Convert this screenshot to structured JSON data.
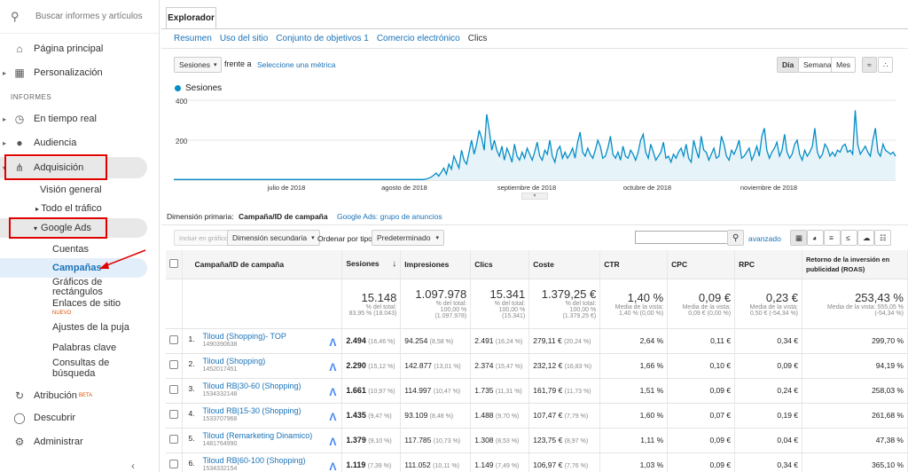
{
  "sidebar": {
    "search_placeholder": "Buscar informes y artículos",
    "home": "Página principal",
    "custom": "Personalización",
    "section_reports": "INFORMES",
    "realtime": "En tiempo real",
    "audience": "Audiencia",
    "acquisition": "Adquisición",
    "overview": "Visión general",
    "all_traffic": "Todo el tráfico",
    "google_ads": "Google Ads",
    "cuentas": "Cuentas",
    "campanas": "Campañas",
    "graficos1": "Gráficos de",
    "graficos2": "rectángulos",
    "enlaces": "Enlaces de sitio",
    "nuevo": "NUEVO",
    "ajustes": "Ajustes de la puja",
    "palabras": "Palabras clave",
    "consultas1": "Consultas de",
    "consultas2": "búsqueda",
    "atribucion": "Atribución",
    "beta": "BETA",
    "descubrir": "Descubrir",
    "administrar": "Administrar"
  },
  "explorer": {
    "tab": "Explorador",
    "subtabs": [
      "Resumen",
      "Uso del sitio",
      "Conjunto de objetivos 1",
      "Comercio electrónico",
      "Clics"
    ],
    "metric": "Sesiones",
    "vs": "frente a",
    "select_metric": "Seleccione una métrica",
    "day": "Día",
    "week": "Semana",
    "month": "Mes"
  },
  "chart_data": {
    "type": "area",
    "series": [
      {
        "name": "Sesiones",
        "values": [
          3,
          3,
          3,
          3,
          3,
          3,
          3,
          3,
          3,
          3,
          3,
          3,
          3,
          3,
          3,
          3,
          3,
          3,
          3,
          3,
          3,
          3,
          3,
          3,
          3,
          3,
          3,
          3,
          3,
          3,
          3,
          3,
          3,
          3,
          3,
          3,
          3,
          3,
          3,
          3,
          3,
          3,
          3,
          3,
          3,
          3,
          3,
          3,
          3,
          3,
          3,
          3,
          3,
          3,
          3,
          3,
          3,
          3,
          3,
          3,
          3,
          3,
          3,
          3,
          3,
          3,
          3,
          3,
          3,
          3,
          3,
          3,
          3,
          3,
          3,
          3,
          3,
          3,
          3,
          3,
          3,
          3,
          3,
          3,
          3,
          3,
          3,
          3,
          3,
          3,
          3,
          3,
          3,
          3,
          3,
          3,
          3,
          3,
          3,
          3,
          5,
          10,
          15,
          25,
          35,
          20,
          40,
          60,
          30,
          80,
          55,
          120,
          90,
          60,
          150,
          100,
          80,
          140,
          200,
          130,
          180,
          250,
          210,
          150,
          330,
          250,
          150,
          200,
          150,
          120,
          170,
          100,
          160,
          130,
          90,
          180,
          120,
          100,
          140,
          110,
          160,
          130,
          100,
          140,
          190,
          120,
          100,
          150,
          130,
          200,
          120,
          90,
          150,
          170,
          110,
          140,
          110,
          130,
          160,
          110,
          190,
          240,
          140,
          120,
          160,
          130,
          110,
          150,
          200,
          170,
          110,
          120,
          160,
          220,
          130,
          110,
          140,
          100,
          170,
          120,
          110,
          150,
          130,
          100,
          140,
          200,
          230,
          140,
          110,
          180,
          140,
          100,
          120,
          140,
          190,
          110,
          120,
          90,
          130,
          110,
          140,
          160,
          120,
          180,
          110,
          90,
          200,
          150,
          110,
          220,
          150,
          140,
          100,
          130,
          160,
          110,
          120,
          220,
          180,
          120,
          100,
          150,
          130,
          160,
          200,
          110,
          120,
          140,
          160,
          100,
          130,
          170,
          120,
          220,
          260,
          150,
          110,
          140,
          160,
          190,
          120,
          150,
          230,
          140,
          110,
          130,
          180,
          200,
          130,
          100,
          150,
          120,
          140,
          170,
          260,
          140,
          110,
          130,
          180,
          160,
          120,
          140,
          120,
          150,
          140,
          170,
          180,
          140,
          150,
          130,
          350,
          180,
          130,
          150,
          170,
          140,
          120,
          200,
          260,
          140,
          120,
          180,
          150,
          140,
          130,
          140,
          120
        ]
      }
    ],
    "y_ticks": [
      {
        "label": "400",
        "value": 400
      },
      {
        "label": "200",
        "value": 200
      }
    ],
    "x_labels": [
      "julio de 2018",
      "agosto de 2018",
      "septiembre de 2018",
      "octubre de 2018",
      "noviembre de 2018"
    ],
    "ylim": [
      0,
      400
    ]
  },
  "dimension": {
    "label": "Dimensión primaria:",
    "active": "Campaña/ID de campaña",
    "alt": "Google Ads: grupo de anuncios",
    "include": "Incluir en gráfico",
    "secondary": "Dimensión secundaria",
    "sort_label": "Ordenar por tipo:",
    "sort_value": "Predeterminado",
    "advanced": "avanzado"
  },
  "table": {
    "headers": [
      "Campaña/ID de campaña",
      "Sesiones",
      "Impresiones",
      "Clics",
      "Coste",
      "CTR",
      "CPC",
      "RPC",
      "Retorno de la inversión en publicidad (ROAS)"
    ],
    "totals": [
      {
        "main": "15.148",
        "sub1": "% del total:",
        "sub2": "83,95 % (18.043)",
        "sub3": ""
      },
      {
        "main": "1.097.978",
        "sub1": "% del total:",
        "sub2": "100,00 %",
        "sub3": "(1.097.978)"
      },
      {
        "main": "15.341",
        "sub1": "% del total:",
        "sub2": "100,00 %",
        "sub3": "(15.341)"
      },
      {
        "main": "1.379,25 €",
        "sub1": "% del total:",
        "sub2": "100,00 %",
        "sub3": "(1.379,25 €)"
      },
      {
        "main": "1,40 %",
        "sub1": "Media de la vista:",
        "sub2": "1,40 % (0,00 %)",
        "sub3": ""
      },
      {
        "main": "0,09 €",
        "sub1": "Media de la vista:",
        "sub2": "0,09 € (0,00 %)",
        "sub3": ""
      },
      {
        "main": "0,23 €",
        "sub1": "Media de la vista:",
        "sub2": "0,50 € (-54,34 %)",
        "sub3": ""
      },
      {
        "main": "253,43 %",
        "sub1": "Media de la vista: 555,05 %",
        "sub2": "(-54,34 %)",
        "sub3": ""
      }
    ],
    "rows": [
      {
        "n": "1.",
        "name": "Tiloud (Shopping)- TOP",
        "id": "1490390638",
        "ses": "2.494",
        "sesp": "(16,46 %)",
        "imp": "94.254",
        "impp": "(8,58 %)",
        "cli": "2.491",
        "clip": "(16,24 %)",
        "cost": "279,11 €",
        "costp": "(20,24 %)",
        "ctr": "2,64 %",
        "cpc": "0,11 €",
        "rpc": "0,34 €",
        "roas": "299,70 %"
      },
      {
        "n": "2.",
        "name": "Tiloud (Shopping)",
        "id": "1452017451",
        "ses": "2.290",
        "sesp": "(15,12 %)",
        "imp": "142.877",
        "impp": "(13,01 %)",
        "cli": "2.374",
        "clip": "(15,47 %)",
        "cost": "232,12 €",
        "costp": "(16,83 %)",
        "ctr": "1,66 %",
        "cpc": "0,10 €",
        "rpc": "0,09 €",
        "roas": "94,19 %"
      },
      {
        "n": "3.",
        "name": "Tiloud RB|30-60 (Shopping)",
        "id": "1534332148",
        "ses": "1.661",
        "sesp": "(10,97 %)",
        "imp": "114.997",
        "impp": "(10,47 %)",
        "cli": "1.735",
        "clip": "(11,31 %)",
        "cost": "161,79 €",
        "costp": "(11,73 %)",
        "ctr": "1,51 %",
        "cpc": "0,09 €",
        "rpc": "0,24 €",
        "roas": "258,03 %"
      },
      {
        "n": "4.",
        "name": "Tiloud RB|15-30 (Shopping)",
        "id": "1533707968",
        "ses": "1.435",
        "sesp": "(9,47 %)",
        "imp": "93.109",
        "impp": "(8,48 %)",
        "cli": "1.488",
        "clip": "(9,70 %)",
        "cost": "107,47 €",
        "costp": "(7,79 %)",
        "ctr": "1,60 %",
        "cpc": "0,07 €",
        "rpc": "0,19 €",
        "roas": "261,68 %"
      },
      {
        "n": "5.",
        "name": "Tiloud (Remarketing Dinamico)",
        "id": "1481764990",
        "ses": "1.379",
        "sesp": "(9,10 %)",
        "imp": "117.785",
        "impp": "(10,73 %)",
        "cli": "1.308",
        "clip": "(8,53 %)",
        "cost": "123,75 €",
        "costp": "(8,97 %)",
        "ctr": "1,11 %",
        "cpc": "0,09 €",
        "rpc": "0,04 €",
        "roas": "47,38 %"
      },
      {
        "n": "6.",
        "name": "Tiloud RB|60-100 (Shopping)",
        "id": "1534332154",
        "ses": "1.119",
        "sesp": "(7,39 %)",
        "imp": "111.052",
        "impp": "(10,11 %)",
        "cli": "1.149",
        "clip": "(7,49 %)",
        "cost": "106,97 €",
        "costp": "(7,76 %)",
        "ctr": "1,03 %",
        "cpc": "0,09 €",
        "rpc": "0,34 €",
        "roas": "365,10 %"
      }
    ]
  }
}
